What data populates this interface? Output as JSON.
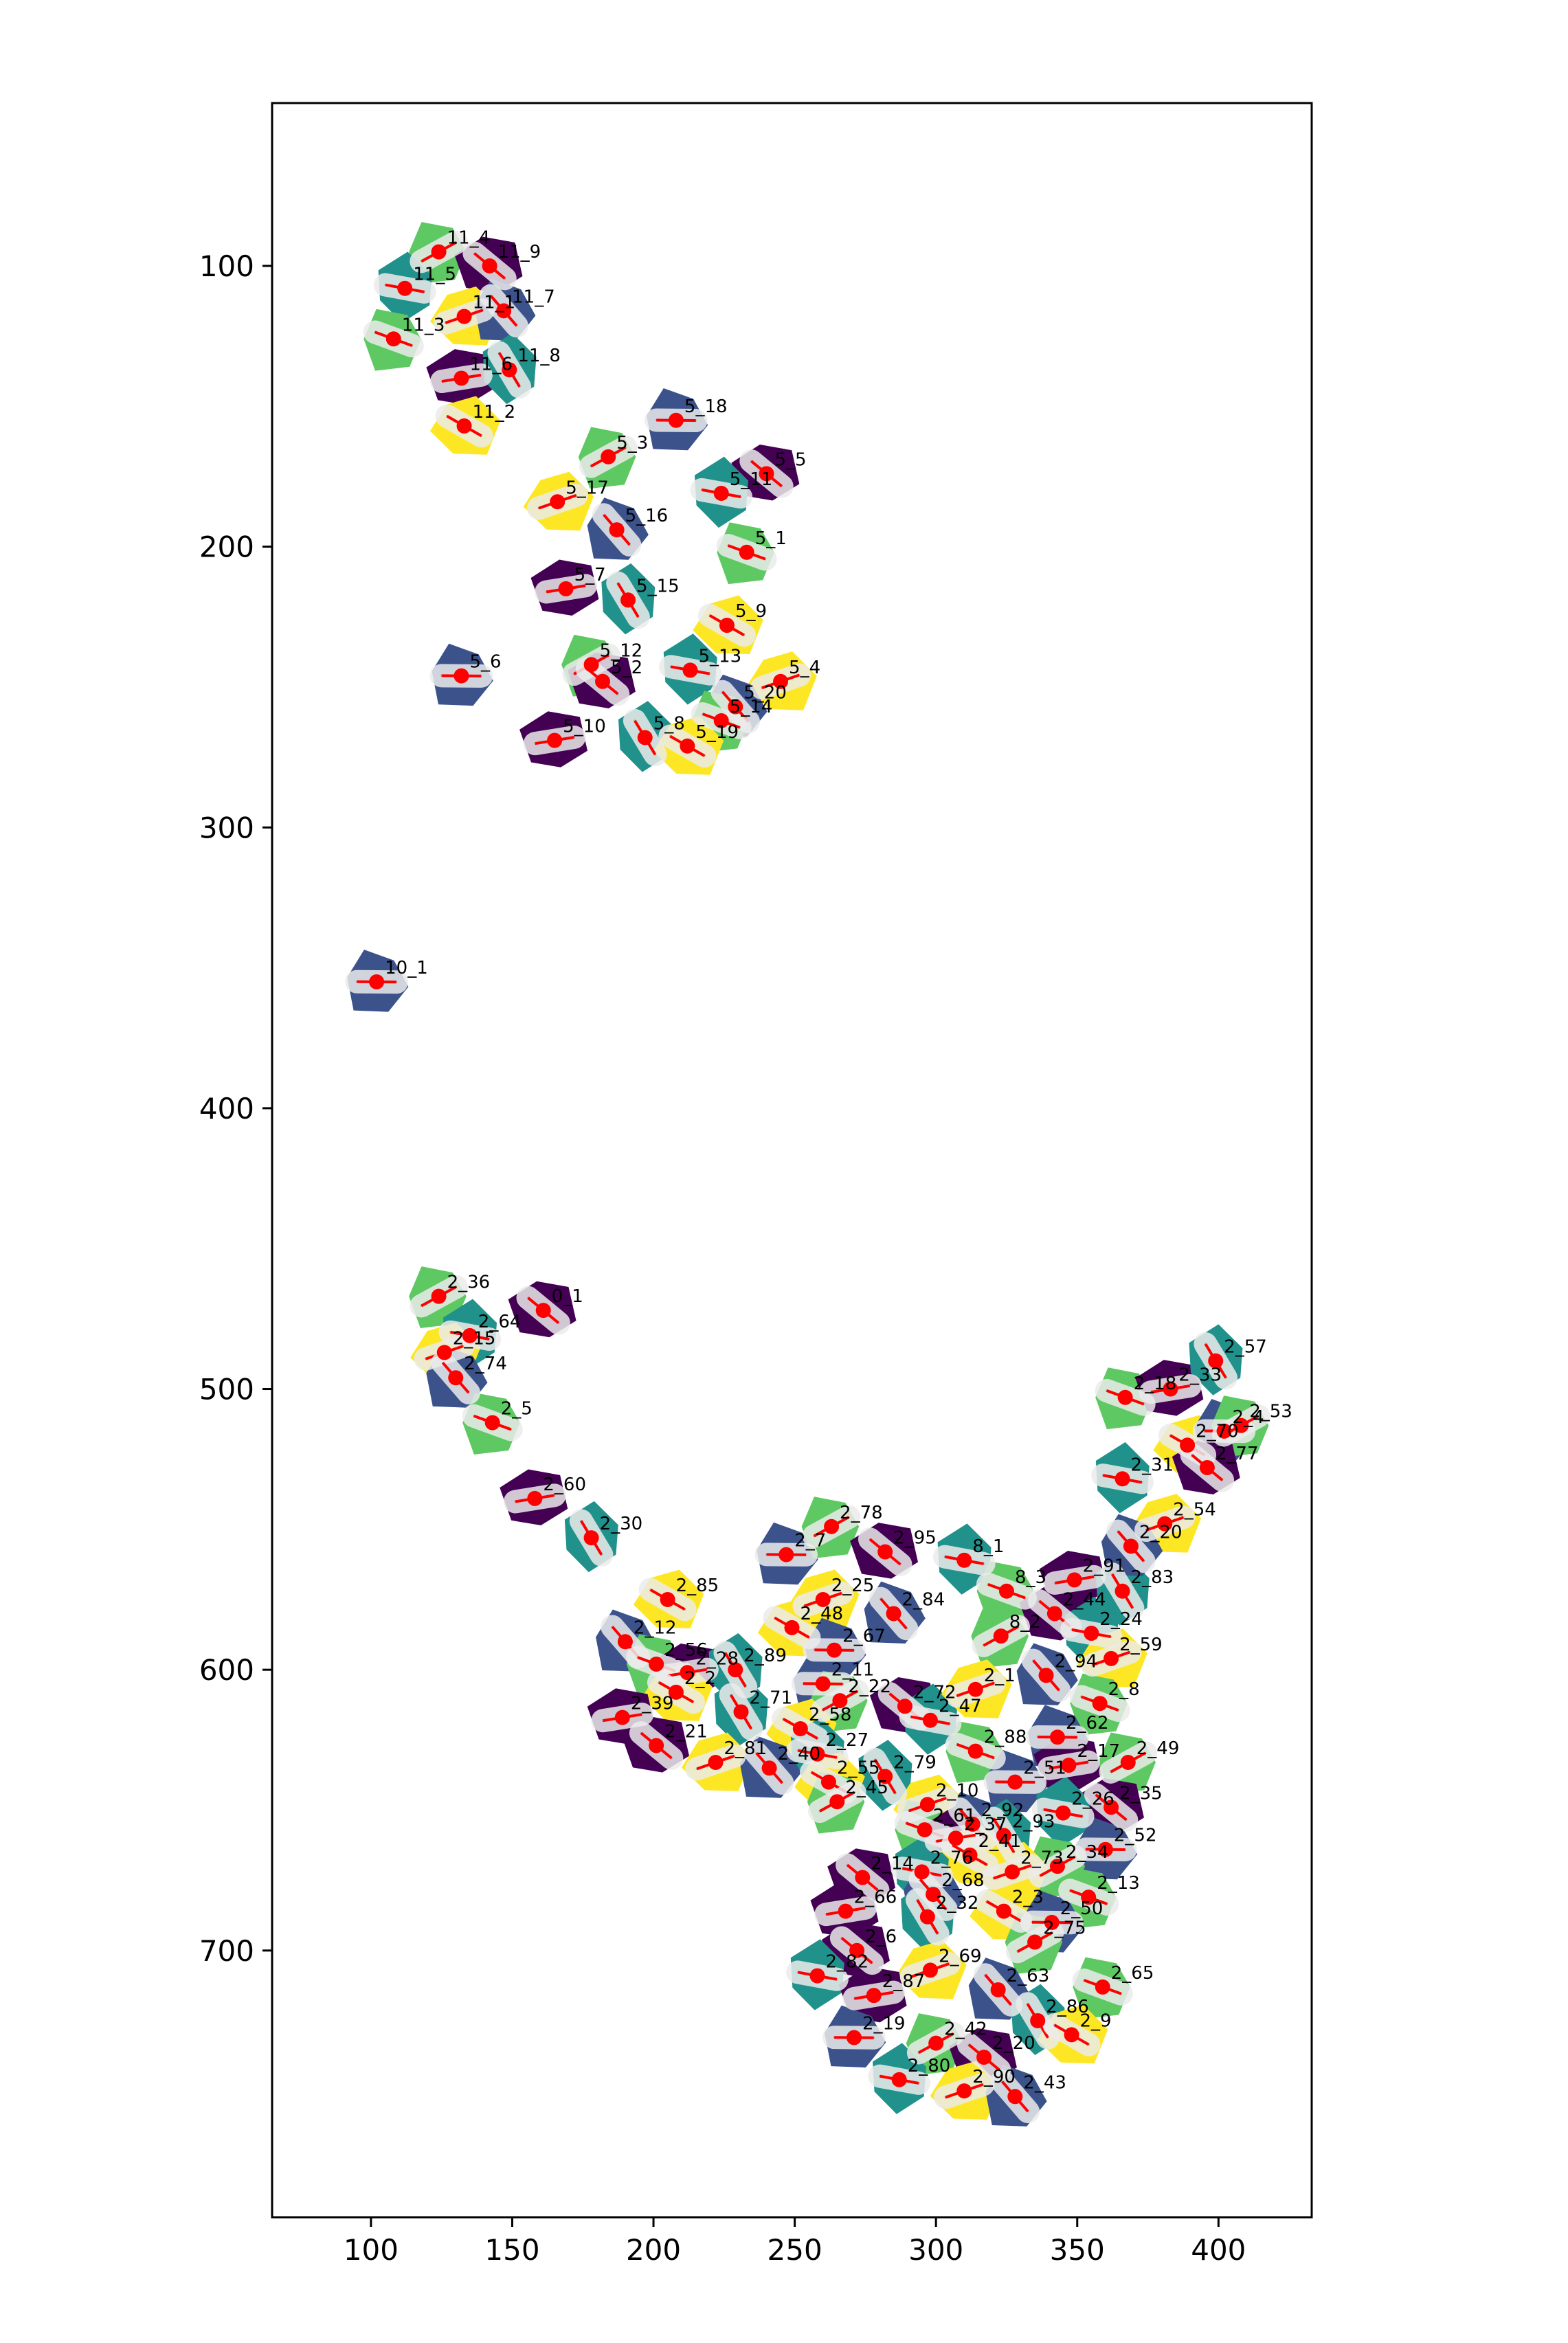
{
  "chart_data": {
    "type": "scatter",
    "title": "",
    "xlabel": "",
    "ylabel": "",
    "xlim": [
      65,
      433
    ],
    "ylim": [
      795,
      42
    ],
    "y_inverted": true,
    "xticks": [
      100,
      150,
      200,
      250,
      300,
      350,
      400
    ],
    "yticks": [
      100,
      200,
      300,
      400,
      500,
      600,
      700
    ],
    "grid": false,
    "legend": "none",
    "colormap": [
      "#440154",
      "#3b528b",
      "#21918c",
      "#5ec962",
      "#fde725"
    ],
    "point_color": "#ff0000",
    "points": [
      {
        "label": "11_4",
        "x": 124,
        "y": 95
      },
      {
        "label": "11_9",
        "x": 142,
        "y": 100
      },
      {
        "label": "11_5",
        "x": 112,
        "y": 108
      },
      {
        "label": "11_1",
        "x": 133,
        "y": 118
      },
      {
        "label": "11_7",
        "x": 147,
        "y": 116
      },
      {
        "label": "11_3",
        "x": 108,
        "y": 126
      },
      {
        "label": "11_6",
        "x": 132,
        "y": 140
      },
      {
        "label": "11_8",
        "x": 149,
        "y": 137
      },
      {
        "label": "11_2",
        "x": 133,
        "y": 157
      },
      {
        "label": "5_18",
        "x": 208,
        "y": 155
      },
      {
        "label": "5_3",
        "x": 184,
        "y": 168
      },
      {
        "label": "5_5",
        "x": 240,
        "y": 174
      },
      {
        "label": "5_11",
        "x": 224,
        "y": 181
      },
      {
        "label": "5_17",
        "x": 166,
        "y": 184
      },
      {
        "label": "5_16",
        "x": 187,
        "y": 194
      },
      {
        "label": "5_1",
        "x": 233,
        "y": 202
      },
      {
        "label": "5_7",
        "x": 169,
        "y": 215
      },
      {
        "label": "5_15",
        "x": 191,
        "y": 219
      },
      {
        "label": "5_9",
        "x": 226,
        "y": 228
      },
      {
        "label": "5_6",
        "x": 132,
        "y": 246
      },
      {
        "label": "5_12",
        "x": 178,
        "y": 242
      },
      {
        "label": "5_2",
        "x": 182,
        "y": 248
      },
      {
        "label": "5_13",
        "x": 213,
        "y": 244
      },
      {
        "label": "5_4",
        "x": 245,
        "y": 248
      },
      {
        "label": "5_20",
        "x": 229,
        "y": 257
      },
      {
        "label": "5_14",
        "x": 224,
        "y": 262
      },
      {
        "label": "5_10",
        "x": 165,
        "y": 269
      },
      {
        "label": "5_8",
        "x": 197,
        "y": 268
      },
      {
        "label": "5_19",
        "x": 212,
        "y": 271
      },
      {
        "label": "10_1",
        "x": 102,
        "y": 355
      },
      {
        "label": "2_36",
        "x": 124,
        "y": 467
      },
      {
        "label": "0_1",
        "x": 161,
        "y": 472
      },
      {
        "label": "2_64",
        "x": 135,
        "y": 481
      },
      {
        "label": "2_15",
        "x": 126,
        "y": 487
      },
      {
        "label": "2_74",
        "x": 130,
        "y": 496
      },
      {
        "label": "2_5",
        "x": 143,
        "y": 512
      },
      {
        "label": "2_60",
        "x": 158,
        "y": 539
      },
      {
        "label": "2_30",
        "x": 178,
        "y": 553
      },
      {
        "label": "2_85",
        "x": 205,
        "y": 575
      },
      {
        "label": "2_7",
        "x": 247,
        "y": 559
      },
      {
        "label": "2_78",
        "x": 263,
        "y": 549
      },
      {
        "label": "2_95",
        "x": 282,
        "y": 558
      },
      {
        "label": "8_1",
        "x": 310,
        "y": 561
      },
      {
        "label": "2_25",
        "x": 260,
        "y": 575
      },
      {
        "label": "2_84",
        "x": 285,
        "y": 580
      },
      {
        "label": "8_3",
        "x": 325,
        "y": 572
      },
      {
        "label": "2_91",
        "x": 349,
        "y": 568
      },
      {
        "label": "2_83",
        "x": 366,
        "y": 572
      },
      {
        "label": "2_48",
        "x": 249,
        "y": 585
      },
      {
        "label": "2_67",
        "x": 264,
        "y": 593
      },
      {
        "label": "8_2",
        "x": 323,
        "y": 588
      },
      {
        "label": "2_44",
        "x": 342,
        "y": 580
      },
      {
        "label": "2_24",
        "x": 355,
        "y": 587
      },
      {
        "label": "2_59",
        "x": 362,
        "y": 596
      },
      {
        "label": "2_12",
        "x": 190,
        "y": 590
      },
      {
        "label": "2_56",
        "x": 201,
        "y": 598
      },
      {
        "label": "2_28",
        "x": 212,
        "y": 601
      },
      {
        "label": "2_89",
        "x": 229,
        "y": 600
      },
      {
        "label": "2_2",
        "x": 208,
        "y": 608
      },
      {
        "label": "2_11",
        "x": 260,
        "y": 605
      },
      {
        "label": "2_22",
        "x": 266,
        "y": 611
      },
      {
        "label": "2_72",
        "x": 289,
        "y": 613
      },
      {
        "label": "2_47",
        "x": 298,
        "y": 618
      },
      {
        "label": "2_1",
        "x": 314,
        "y": 607
      },
      {
        "label": "2_94",
        "x": 339,
        "y": 602
      },
      {
        "label": "2_8",
        "x": 358,
        "y": 612
      },
      {
        "label": "2_39",
        "x": 189,
        "y": 617
      },
      {
        "label": "2_71",
        "x": 231,
        "y": 615
      },
      {
        "label": "2_58",
        "x": 252,
        "y": 621
      },
      {
        "label": "2_62",
        "x": 343,
        "y": 624
      },
      {
        "label": "2_49",
        "x": 368,
        "y": 633
      },
      {
        "label": "2_21",
        "x": 201,
        "y": 627
      },
      {
        "label": "2_27",
        "x": 258,
        "y": 630
      },
      {
        "label": "2_81",
        "x": 222,
        "y": 633
      },
      {
        "label": "2_40",
        "x": 241,
        "y": 635
      },
      {
        "label": "2_88",
        "x": 314,
        "y": 629
      },
      {
        "label": "2_17",
        "x": 347,
        "y": 634
      },
      {
        "label": "2_79",
        "x": 282,
        "y": 638
      },
      {
        "label": "2_55",
        "x": 262,
        "y": 640
      },
      {
        "label": "2_51",
        "x": 328,
        "y": 640
      },
      {
        "label": "2_45",
        "x": 265,
        "y": 647
      },
      {
        "label": "2_35",
        "x": 362,
        "y": 649
      },
      {
        "label": "2_26",
        "x": 345,
        "y": 651
      },
      {
        "label": "2_10",
        "x": 297,
        "y": 648
      },
      {
        "label": "2_92",
        "x": 313,
        "y": 655
      },
      {
        "label": "2_61",
        "x": 296,
        "y": 657
      },
      {
        "label": "2_37",
        "x": 307,
        "y": 660
      },
      {
        "label": "2_93",
        "x": 324,
        "y": 659
      },
      {
        "label": "2_41",
        "x": 312,
        "y": 666
      },
      {
        "label": "2_52",
        "x": 360,
        "y": 664
      },
      {
        "label": "2_34",
        "x": 343,
        "y": 670
      },
      {
        "label": "2_14",
        "x": 274,
        "y": 674
      },
      {
        "label": "2_76",
        "x": 295,
        "y": 672
      },
      {
        "label": "2_73",
        "x": 327,
        "y": 672
      },
      {
        "label": "2_68",
        "x": 299,
        "y": 680
      },
      {
        "label": "2_13",
        "x": 354,
        "y": 681
      },
      {
        "label": "2_66",
        "x": 268,
        "y": 686
      },
      {
        "label": "2_32",
        "x": 297,
        "y": 688
      },
      {
        "label": "2_3",
        "x": 324,
        "y": 686
      },
      {
        "label": "2_50",
        "x": 341,
        "y": 690
      },
      {
        "label": "2_75",
        "x": 335,
        "y": 697
      },
      {
        "label": "2_6",
        "x": 272,
        "y": 700
      },
      {
        "label": "2_82",
        "x": 258,
        "y": 709
      },
      {
        "label": "2_69",
        "x": 298,
        "y": 707
      },
      {
        "label": "2_63",
        "x": 322,
        "y": 714
      },
      {
        "label": "2_65",
        "x": 359,
        "y": 713
      },
      {
        "label": "2_87",
        "x": 278,
        "y": 716
      },
      {
        "label": "2_86",
        "x": 336,
        "y": 725
      },
      {
        "label": "2_9",
        "x": 348,
        "y": 730
      },
      {
        "label": "2_19",
        "x": 271,
        "y": 731
      },
      {
        "label": "2_42",
        "x": 300,
        "y": 733
      },
      {
        "label": "2_20",
        "x": 317,
        "y": 738
      },
      {
        "label": "2_80",
        "x": 287,
        "y": 746
      },
      {
        "label": "2_90",
        "x": 310,
        "y": 750
      },
      {
        "label": "2_43",
        "x": 328,
        "y": 752
      },
      {
        "label": "2_18",
        "x": 367,
        "y": 503
      },
      {
        "label": "2_33",
        "x": 383,
        "y": 500
      },
      {
        "label": "2_57",
        "x": 399,
        "y": 490
      },
      {
        "label": "2_70",
        "x": 389,
        "y": 520
      },
      {
        "label": "2_4",
        "x": 402,
        "y": 515
      },
      {
        "label": "2_53",
        "x": 408,
        "y": 513
      },
      {
        "label": "2_77",
        "x": 396,
        "y": 528
      },
      {
        "label": "2_31",
        "x": 366,
        "y": 532
      },
      {
        "label": "2_54",
        "x": 381,
        "y": 548
      },
      {
        "label": "2_20b",
        "x": 369,
        "y": 556
      }
    ]
  }
}
